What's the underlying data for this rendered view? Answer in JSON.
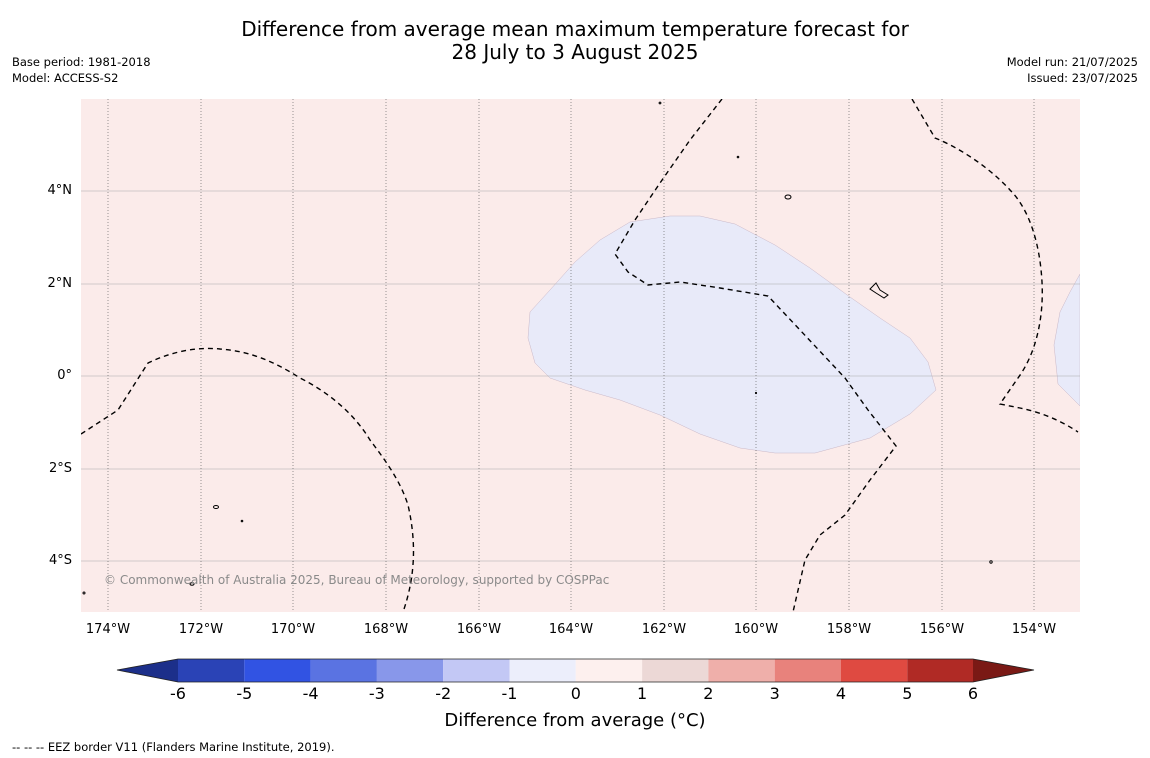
{
  "title": {
    "line1": "Difference from average mean maximum temperature forecast for",
    "line2": "28 July to 3 August 2025"
  },
  "meta_left": {
    "base_period": "Base period: 1981-2018",
    "model": "Model: ACCESS-S2"
  },
  "meta_right": {
    "model_run": "Model run: 21/07/2025",
    "issued": "Issued: 23/07/2025"
  },
  "map": {
    "lat_labels": [
      "4°N",
      "2°N",
      "0°",
      "2°S",
      "4°S"
    ],
    "lon_labels": [
      "174°W",
      "172°W",
      "170°W",
      "168°W",
      "166°W",
      "164°W",
      "162°W",
      "160°W",
      "158°W",
      "156°W",
      "154°W"
    ],
    "copyright": "© Commonwealth of Australia 2025, Bureau of Meteorology, supported by COSPPac",
    "background_color": "#fbebea",
    "cool_region_color": "#e8eaf9"
  },
  "colorbar": {
    "title": "Difference from average (°C)",
    "ticks": [
      "-6",
      "-5",
      "-4",
      "-3",
      "-2",
      "-1",
      "0",
      "1",
      "2",
      "3",
      "4",
      "5",
      "6"
    ],
    "colors": [
      "#1c2f8a",
      "#2a43b6",
      "#3153e3",
      "#5a73e2",
      "#8897ea",
      "#c3c8f5",
      "#eceefb",
      "#fdf0ee",
      "#ecd8d6",
      "#efafaa",
      "#e8827c",
      "#df4a41",
      "#b02a25",
      "#7a1915"
    ]
  },
  "footnote": "--  --  -- EEZ border V11 (Flanders Marine Institute, 2019)."
}
